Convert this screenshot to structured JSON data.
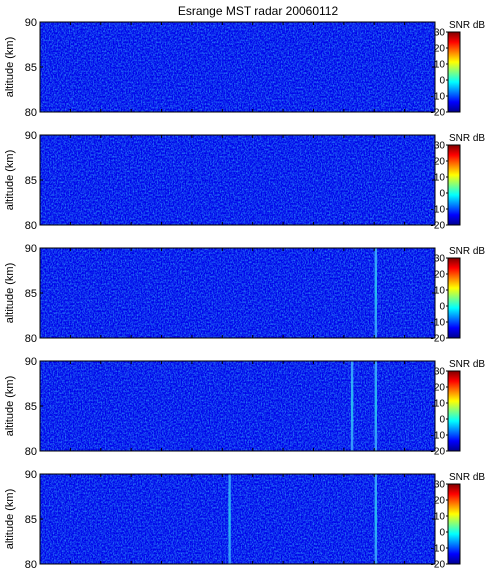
{
  "title": "Esrange MST radar 20060112",
  "chart_data": [
    {
      "type": "heatmap",
      "ylabel": "altitude (km)",
      "ylim": [
        80,
        90
      ],
      "yticks": [
        "90",
        "85",
        "80"
      ],
      "colorbar": {
        "label": "SNR dB",
        "range": [
          -20,
          30
        ],
        "ticks": [
          "30",
          "20",
          "10",
          "0",
          "-10",
          "-20"
        ]
      },
      "background_snr_db": -15,
      "streaks": []
    },
    {
      "type": "heatmap",
      "ylabel": "altitude (km)",
      "ylim": [
        80,
        90
      ],
      "yticks": [
        "90",
        "85",
        "80"
      ],
      "colorbar": {
        "label": "SNR dB",
        "range": [
          -20,
          30
        ],
        "ticks": [
          "30",
          "20",
          "10",
          "0",
          "-10",
          "-20"
        ]
      },
      "background_snr_db": -15,
      "streaks": []
    },
    {
      "type": "heatmap",
      "ylabel": "altitude (km)",
      "ylim": [
        80,
        90
      ],
      "yticks": [
        "90",
        "85",
        "80"
      ],
      "colorbar": {
        "label": "SNR dB",
        "range": [
          -20,
          30
        ],
        "ticks": [
          "30",
          "20",
          "10",
          "0",
          "-10",
          "-20"
        ]
      },
      "background_snr_db": -15,
      "streaks": [
        0.85
      ]
    },
    {
      "type": "heatmap",
      "ylabel": "altitude (km)",
      "ylim": [
        80,
        90
      ],
      "yticks": [
        "90",
        "85",
        "80"
      ],
      "colorbar": {
        "label": "SNR dB",
        "range": [
          -20,
          30
        ],
        "ticks": [
          "30",
          "20",
          "10",
          "0",
          "-10",
          "-20"
        ]
      },
      "background_snr_db": -15,
      "streaks": [
        0.85,
        0.79
      ]
    },
    {
      "type": "heatmap",
      "ylabel": "altitude (km)",
      "ylim": [
        80,
        90
      ],
      "yticks": [
        "90",
        "85",
        "80"
      ],
      "colorbar": {
        "label": "SNR dB",
        "range": [
          -20,
          30
        ],
        "ticks": [
          "30",
          "20",
          "10",
          "0",
          "-10",
          "-20"
        ]
      },
      "background_snr_db": -15,
      "streaks": [
        0.85,
        0.48
      ]
    }
  ]
}
